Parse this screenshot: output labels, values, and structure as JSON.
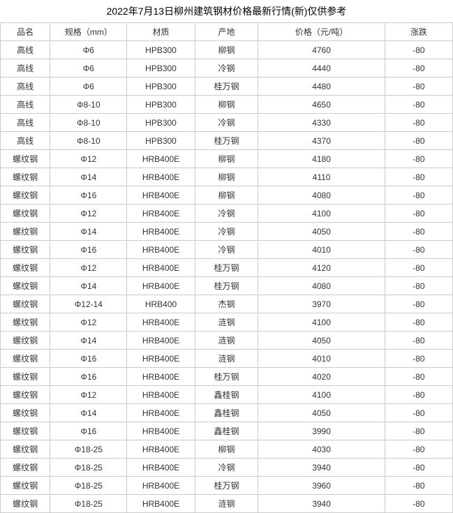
{
  "title": "2022年7月13日柳州建筑钢材价格最新行情(新)仅供参考",
  "columns": [
    "品名",
    "规格（mm）",
    "材质",
    "产地",
    "价格（元/吨）",
    "涨跌"
  ],
  "column_widths": [
    "11%",
    "17%",
    "15%",
    "14%",
    "28%",
    "15%"
  ],
  "background_color": "#ffffff",
  "border_color": "#cccccc",
  "text_color": "#333333",
  "font_size": 12,
  "rows": [
    [
      "高线",
      "Φ6",
      "HPB300",
      "柳钢",
      "4760",
      "-80"
    ],
    [
      "高线",
      "Φ6",
      "HPB300",
      "冷钢",
      "4440",
      "-80"
    ],
    [
      "高线",
      "Φ6",
      "HPB300",
      "桂万钢",
      "4480",
      "-80"
    ],
    [
      "高线",
      "Φ8-10",
      "HPB300",
      "柳钢",
      "4650",
      "-80"
    ],
    [
      "高线",
      "Φ8-10",
      "HPB300",
      "冷钢",
      "4330",
      "-80"
    ],
    [
      "高线",
      "Φ8-10",
      "HPB300",
      "桂万钢",
      "4370",
      "-80"
    ],
    [
      "螺纹钢",
      "Φ12",
      "HRB400E",
      "柳钢",
      "4180",
      "-80"
    ],
    [
      "螺纹钢",
      "Φ14",
      "HRB400E",
      "柳钢",
      "4110",
      "-80"
    ],
    [
      "螺纹钢",
      "Φ16",
      "HRB400E",
      "柳钢",
      "4080",
      "-80"
    ],
    [
      "螺纹钢",
      "Φ12",
      "HRB400E",
      "冷钢",
      "4100",
      "-80"
    ],
    [
      "螺纹钢",
      "Φ14",
      "HRB400E",
      "冷钢",
      "4050",
      "-80"
    ],
    [
      "螺纹钢",
      "Φ16",
      "HRB400E",
      "冷钢",
      "4010",
      "-80"
    ],
    [
      "螺纹钢",
      "Φ12",
      "HRB400E",
      "桂万钢",
      "4120",
      "-80"
    ],
    [
      "螺纹钢",
      "Φ14",
      "HRB400E",
      "桂万钢",
      "4080",
      "-80"
    ],
    [
      "螺纹钢",
      "Φ12-14",
      "HRB400",
      "杰钢",
      "3970",
      "-80"
    ],
    [
      "螺纹钢",
      "Φ12",
      "HRB400E",
      "涟钢",
      "4100",
      "-80"
    ],
    [
      "螺纹钢",
      "Φ14",
      "HRB400E",
      "涟钢",
      "4050",
      "-80"
    ],
    [
      "螺纹钢",
      "Φ16",
      "HRB400E",
      "涟钢",
      "4010",
      "-80"
    ],
    [
      "螺纹钢",
      "Φ16",
      "HRB400E",
      "桂万钢",
      "4020",
      "-80"
    ],
    [
      "螺纹钢",
      "Φ12",
      "HRB400E",
      "鑫桂钢",
      "4100",
      "-80"
    ],
    [
      "螺纹钢",
      "Φ14",
      "HRB400E",
      "鑫桂钢",
      "4050",
      "-80"
    ],
    [
      "螺纹钢",
      "Φ16",
      "HRB400E",
      "鑫桂钢",
      "3990",
      "-80"
    ],
    [
      "螺纹钢",
      "Φ18-25",
      "HRB400E",
      "柳钢",
      "4030",
      "-80"
    ],
    [
      "螺纹钢",
      "Φ18-25",
      "HRB400E",
      "冷钢",
      "3940",
      "-80"
    ],
    [
      "螺纹钢",
      "Φ18-25",
      "HRB400E",
      "桂万钢",
      "3960",
      "-80"
    ],
    [
      "螺纹钢",
      "Φ18-25",
      "HRB400E",
      "涟钢",
      "3940",
      "-80"
    ]
  ]
}
